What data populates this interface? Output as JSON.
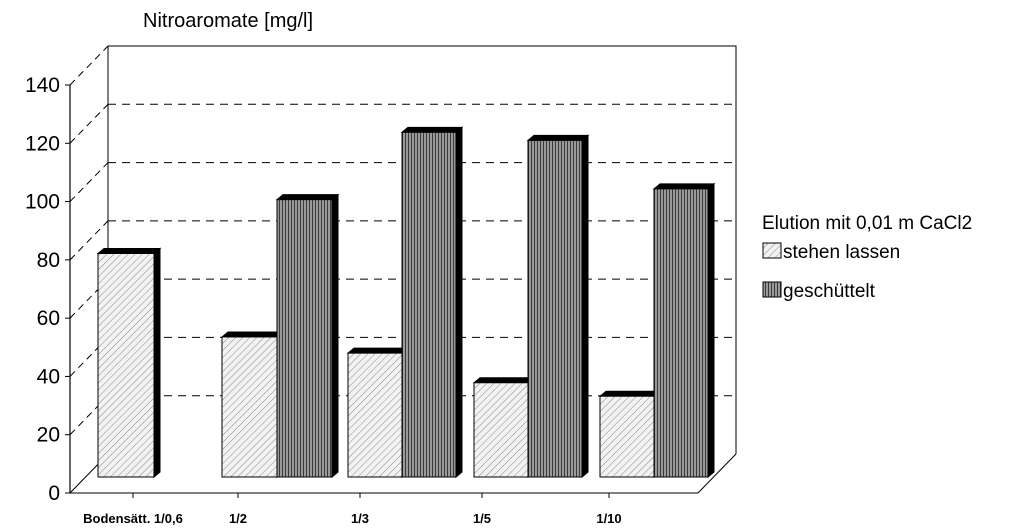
{
  "chart_data": {
    "type": "bar",
    "ylabel": "Nitroaromate [mg/l]",
    "xlabel": "",
    "categories": [
      "Bodensätt. 1/0,6",
      "1/2",
      "1/3",
      "1/5",
      "1/10"
    ],
    "ylim": [
      0,
      140
    ],
    "yticks": [
      0,
      20,
      40,
      60,
      80,
      100,
      120,
      140
    ],
    "grid": true,
    "legend": {
      "title": "Elution mit 0,01 m CaCl2",
      "placement": "right"
    },
    "series": [
      {
        "name": "stehen lassen",
        "values": [
          83,
          52,
          46,
          35,
          30
        ],
        "pattern": "light-hatch"
      },
      {
        "name": "geschüttelt",
        "values": [
          null,
          103,
          128,
          125,
          107
        ],
        "pattern": "dark-vertical"
      }
    ]
  }
}
